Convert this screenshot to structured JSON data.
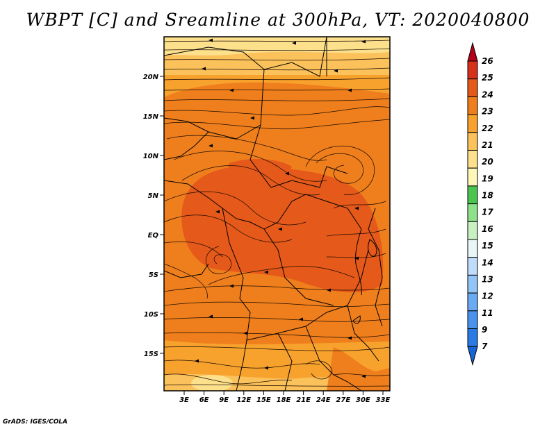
{
  "title": "WBPT [C] and Sreamline at 300hPa, VT: 2020040800",
  "credit": "GrADS: IGES/COLA",
  "map": {
    "lat_labels": [
      "20N",
      "15N",
      "10N",
      "5N",
      "EQ",
      "5S",
      "10S",
      "15S"
    ],
    "lon_labels": [
      "3E",
      "6E",
      "9E",
      "12E",
      "15E",
      "18E",
      "21E",
      "24E",
      "27E",
      "30E",
      "33E"
    ],
    "field_colors": {
      "c19_20": "#fde08c",
      "c20_21": "#fbc15a",
      "c21_22": "#f8a22e",
      "c22_23": "#ef7f1d",
      "c23_24": "#e5591a"
    }
  },
  "colorbar": {
    "labels": [
      "7",
      "9",
      "11",
      "12",
      "13",
      "14",
      "15",
      "16",
      "17",
      "18",
      "19",
      "20",
      "21",
      "22",
      "23",
      "24",
      "25",
      "26"
    ],
    "colors": [
      "#1565d8",
      "#2a7ae5",
      "#4a92ec",
      "#6aaaf2",
      "#93c4f7",
      "#bfdcfb",
      "#e8f6f8",
      "#c8f0c0",
      "#8ee08a",
      "#4cc450",
      "#fff7b8",
      "#fde08c",
      "#fbc15a",
      "#f8a22e",
      "#ef7f1d",
      "#e5591a",
      "#d6321a",
      "#b3001a"
    ]
  }
}
